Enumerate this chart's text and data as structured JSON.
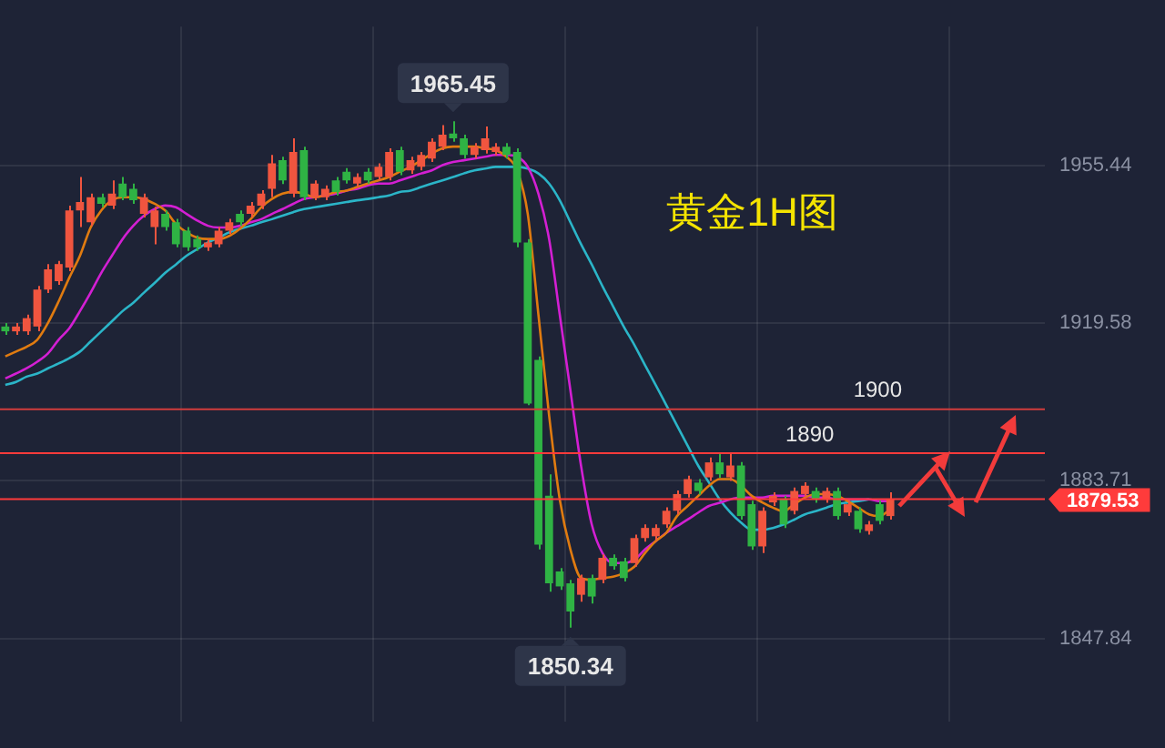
{
  "chart_data": {
    "type": "candlestick",
    "title": "黄金1H图",
    "categories": [
      null,
      null,
      null,
      null,
      null,
      null,
      null,
      null,
      null,
      null,
      null,
      null,
      null,
      null,
      null,
      null,
      null,
      null,
      null,
      null,
      null,
      null,
      null,
      null,
      null,
      null,
      null,
      null,
      null,
      null,
      null,
      null,
      null,
      null,
      null,
      null,
      null,
      null,
      null,
      null,
      null,
      null,
      null,
      null,
      null,
      null,
      null,
      null,
      null,
      null,
      null,
      null,
      null,
      null,
      null,
      null,
      null,
      null,
      null,
      null,
      null,
      null,
      null,
      null,
      null,
      null,
      null,
      null,
      null,
      null,
      null,
      null,
      null,
      null,
      null,
      null,
      null,
      null,
      null,
      null,
      null,
      null,
      null,
      null,
      null,
      null,
      null,
      null,
      null,
      null,
      null,
      null,
      null,
      null,
      null,
      null,
      null,
      null
    ],
    "ohlc": [
      [
        1918.8,
        1919.6,
        1916.9,
        1917.7
      ],
      [
        1917.7,
        1919.6,
        1916.9,
        1918.8
      ],
      [
        1917.7,
        1921.5,
        1916.9,
        1920.7
      ],
      [
        1918.8,
        1928.0,
        1917.7,
        1927.2
      ],
      [
        1927.2,
        1933.0,
        1926.4,
        1931.8
      ],
      [
        1929.1,
        1933.7,
        1928.3,
        1933.0
      ],
      [
        1932.2,
        1946.3,
        1931.4,
        1945.2
      ],
      [
        1945.2,
        1952.8,
        1941.4,
        1947.1
      ],
      [
        1942.5,
        1949.0,
        1941.7,
        1948.2
      ],
      [
        1948.2,
        1949.0,
        1945.9,
        1946.7
      ],
      [
        1946.3,
        1952.0,
        1945.5,
        1949.0
      ],
      [
        1951.3,
        1952.8,
        1947.5,
        1948.2
      ],
      [
        1950.1,
        1951.3,
        1946.7,
        1947.5
      ],
      [
        1944.4,
        1949.0,
        1943.6,
        1948.2
      ],
      [
        1941.4,
        1946.0,
        1937.5,
        1945.2
      ],
      [
        1944.4,
        1945.2,
        1940.6,
        1941.4
      ],
      [
        1942.5,
        1943.3,
        1936.8,
        1937.5
      ],
      [
        1940.6,
        1941.4,
        1936.0,
        1936.8
      ],
      [
        1938.7,
        1939.5,
        1936.0,
        1936.8
      ],
      [
        1936.8,
        1938.7,
        1936.0,
        1937.9
      ],
      [
        1937.5,
        1941.4,
        1936.8,
        1940.6
      ],
      [
        1940.6,
        1943.3,
        1939.8,
        1942.5
      ],
      [
        1944.4,
        1945.2,
        1941.7,
        1942.5
      ],
      [
        1944.4,
        1947.1,
        1943.6,
        1946.3
      ],
      [
        1946.3,
        1949.8,
        1945.5,
        1949.0
      ],
      [
        1950.1,
        1957.8,
        1948.2,
        1955.9
      ],
      [
        1956.6,
        1957.4,
        1951.2,
        1952.0
      ],
      [
        1949.0,
        1961.6,
        1948.2,
        1958.5
      ],
      [
        1958.9,
        1959.7,
        1947.5,
        1948.2
      ],
      [
        1948.2,
        1952.0,
        1947.5,
        1951.3
      ],
      [
        1948.2,
        1950.9,
        1947.5,
        1950.1
      ],
      [
        1952.0,
        1952.8,
        1948.6,
        1949.4
      ],
      [
        1954.0,
        1954.8,
        1951.3,
        1952.0
      ],
      [
        1951.3,
        1953.6,
        1950.5,
        1952.8
      ],
      [
        1954.0,
        1954.8,
        1951.3,
        1952.0
      ],
      [
        1952.8,
        1955.9,
        1952.0,
        1955.1
      ],
      [
        1952.8,
        1959.3,
        1952.0,
        1958.5
      ],
      [
        1958.9,
        1959.7,
        1953.2,
        1954.0
      ],
      [
        1954.3,
        1957.4,
        1953.5,
        1956.6
      ],
      [
        1955.1,
        1958.5,
        1954.3,
        1957.8
      ],
      [
        1957.0,
        1961.6,
        1956.2,
        1960.8
      ],
      [
        1959.7,
        1964.6,
        1958.9,
        1962.4
      ],
      [
        1962.7,
        1965.45,
        1960.8,
        1961.6
      ],
      [
        1961.6,
        1962.4,
        1957.0,
        1957.8
      ],
      [
        1957.8,
        1960.5,
        1957.0,
        1959.7
      ],
      [
        1958.9,
        1964.3,
        1958.1,
        1961.6
      ],
      [
        1958.5,
        1960.5,
        1957.7,
        1959.7
      ],
      [
        1959.7,
        1960.5,
        1957.0,
        1957.8
      ],
      [
        1958.5,
        1959.3,
        1936.8,
        1937.9
      ],
      [
        1937.9,
        1938.7,
        1900.9,
        1901.3
      ],
      [
        1911.2,
        1912.0,
        1868.1,
        1869.2
      ],
      [
        1880.3,
        1885.2,
        1858.5,
        1860.4
      ],
      [
        1863.1,
        1863.9,
        1858.9,
        1859.7
      ],
      [
        1860.4,
        1861.2,
        1850.34,
        1854.0
      ],
      [
        1857.8,
        1862.4,
        1856.2,
        1861.6
      ],
      [
        1861.6,
        1862.4,
        1855.8,
        1857.4
      ],
      [
        1861.2,
        1867.0,
        1860.4,
        1866.2
      ],
      [
        1866.2,
        1867.0,
        1863.5,
        1864.3
      ],
      [
        1865.4,
        1866.2,
        1860.8,
        1861.6
      ],
      [
        1865.0,
        1871.5,
        1864.2,
        1870.7
      ],
      [
        1870.7,
        1873.8,
        1869.9,
        1873.0
      ],
      [
        1871.1,
        1873.8,
        1870.3,
        1873.0
      ],
      [
        1873.8,
        1877.7,
        1873.0,
        1876.9
      ],
      [
        1876.9,
        1881.5,
        1876.1,
        1880.7
      ],
      [
        1880.7,
        1884.9,
        1879.9,
        1884.1
      ],
      [
        1883.3,
        1884.1,
        1880.6,
        1881.4
      ],
      [
        1884.5,
        1889.0,
        1883.7,
        1887.9
      ],
      [
        1887.9,
        1889.8,
        1884.4,
        1885.2
      ],
      [
        1884.5,
        1889.8,
        1883.7,
        1887.2
      ],
      [
        1887.2,
        1888.0,
        1874.9,
        1875.7
      ],
      [
        1878.4,
        1879.2,
        1868.0,
        1868.8
      ],
      [
        1868.8,
        1877.7,
        1867.3,
        1876.9
      ],
      [
        1878.8,
        1881.1,
        1878.0,
        1880.3
      ],
      [
        1879.5,
        1880.3,
        1873.0,
        1873.8
      ],
      [
        1876.9,
        1882.2,
        1876.1,
        1881.4
      ],
      [
        1880.7,
        1883.4,
        1879.9,
        1882.6
      ],
      [
        1881.4,
        1882.2,
        1878.7,
        1879.5
      ],
      [
        1879.5,
        1882.2,
        1878.7,
        1881.4
      ],
      [
        1881.4,
        1882.2,
        1874.9,
        1875.7
      ],
      [
        1876.5,
        1879.2,
        1875.7,
        1878.4
      ],
      [
        1876.9,
        1877.7,
        1871.9,
        1872.7
      ],
      [
        1872.3,
        1874.6,
        1871.5,
        1873.8
      ],
      [
        1878.4,
        1879.2,
        1873.8,
        1874.6
      ],
      [
        1875.7,
        1881.1,
        1874.9,
        1879.53
      ],
      null,
      null,
      null,
      null,
      null,
      null,
      null,
      null,
      null,
      null,
      null,
      null,
      null,
      null
    ],
    "series": [
      {
        "type": "line",
        "color": "#e07b10",
        "values": [
          1912.0,
          1913.1,
          1914.2,
          1915.8,
          1919.6,
          1924.5,
          1929.9,
          1934.9,
          1941.3,
          1945.2,
          1947.5,
          1948.2,
          1948.2,
          1947.8,
          1946.7,
          1945.2,
          1942.1,
          1940.2,
          1939.0,
          1938.7,
          1938.7,
          1939.4,
          1941.0,
          1943.2,
          1945.9,
          1947.8,
          1949.0,
          1949.4,
          1949.0,
          1948.2,
          1948.6,
          1949.4,
          1949.7,
          1950.5,
          1951.3,
          1952.0,
          1952.8,
          1954.0,
          1955.1,
          1956.6,
          1958.1,
          1959.3,
          1959.7,
          1959.7,
          1959.7,
          1959.3,
          1958.9,
          1957.4,
          1954.3,
          1944.4,
          1921.5,
          1898.6,
          1879.5,
          1868.1,
          1861.6,
          1861.2,
          1861.6,
          1861.9,
          1862.7,
          1864.2,
          1867.3,
          1870.0,
          1871.9,
          1875.7,
          1878.0,
          1880.3,
          1882.6,
          1884.1,
          1884.1,
          1882.6,
          1880.3,
          1878.8,
          1877.6,
          1876.8,
          1878.4,
          1879.9,
          1880.7,
          1880.7,
          1880.3,
          1879.1,
          1877.6,
          1876.1,
          1875.7,
          1877.2,
          null,
          null,
          null,
          null,
          null,
          null,
          null,
          null,
          null,
          null,
          null,
          null,
          null,
          null
        ]
      },
      {
        "type": "line",
        "color": "#d31fd3",
        "values": [
          1907.0,
          1908.1,
          1909.3,
          1910.8,
          1912.7,
          1915.8,
          1918.4,
          1922.3,
          1926.5,
          1931.0,
          1934.9,
          1938.7,
          1941.7,
          1944.0,
          1945.5,
          1946.3,
          1945.9,
          1944.4,
          1942.9,
          1941.7,
          1941.3,
          1941.3,
          1941.7,
          1942.5,
          1943.2,
          1944.4,
          1945.5,
          1946.7,
          1947.8,
          1948.2,
          1948.6,
          1949.0,
          1949.7,
          1950.1,
          1950.9,
          1951.3,
          1951.3,
          1952.0,
          1952.8,
          1953.6,
          1954.3,
          1955.5,
          1956.2,
          1956.6,
          1957.0,
          1957.4,
          1957.8,
          1957.8,
          1957.4,
          1955.1,
          1949.0,
          1938.7,
          1921.5,
          1904.3,
          1887.1,
          1873.8,
          1867.3,
          1865.0,
          1865.0,
          1865.8,
          1868.1,
          1870.0,
          1871.9,
          1873.4,
          1874.9,
          1876.5,
          1878.0,
          1878.7,
          1879.5,
          1879.9,
          1879.9,
          1879.9,
          1880.3,
          1880.3,
          1880.3,
          1880.3,
          1879.9,
          1879.9,
          1879.5,
          1879.5,
          1879.5,
          1879.5,
          1879.1,
          1879.1,
          null,
          null,
          null,
          null,
          null,
          null,
          null,
          null,
          null,
          null,
          null,
          null,
          null,
          null
        ]
      },
      {
        "type": "line",
        "color": "#2bb5c8",
        "values": [
          1905.5,
          1906.2,
          1907.4,
          1908.1,
          1909.3,
          1910.4,
          1911.6,
          1913.1,
          1915.4,
          1917.7,
          1920.0,
          1922.3,
          1924.2,
          1926.5,
          1928.7,
          1931.0,
          1932.9,
          1934.9,
          1936.4,
          1937.9,
          1939.0,
          1940.2,
          1941.0,
          1941.7,
          1942.5,
          1943.2,
          1944.0,
          1944.8,
          1945.5,
          1945.9,
          1946.3,
          1946.7,
          1947.1,
          1947.5,
          1947.8,
          1948.2,
          1948.6,
          1949.4,
          1949.7,
          1950.5,
          1951.3,
          1952.0,
          1952.8,
          1953.6,
          1954.3,
          1954.7,
          1955.1,
          1955.1,
          1955.1,
          1954.7,
          1953.6,
          1951.3,
          1947.5,
          1942.5,
          1937.5,
          1932.9,
          1928.0,
          1923.4,
          1918.8,
          1914.6,
          1910.0,
          1905.5,
          1900.9,
          1896.3,
          1891.7,
          1887.1,
          1883.3,
          1879.5,
          1876.5,
          1874.2,
          1872.6,
          1872.6,
          1873.0,
          1873.8,
          1874.9,
          1876.1,
          1876.8,
          1877.6,
          1878.4,
          1878.8,
          1879.1,
          1879.5,
          null,
          null,
          null,
          null,
          null,
          null,
          null,
          null,
          null,
          null,
          null,
          null,
          null,
          null,
          null,
          null
        ]
      }
    ],
    "ylim": [
      1829,
      1987
    ],
    "yticks": [
      1847.84,
      1883.71,
      1919.58,
      1955.44
    ],
    "grid": true,
    "tick_labels": "y",
    "ref_lines": [
      {
        "axis": "y",
        "value": 1900,
        "label": "1900",
        "color": "#d23c3c"
      },
      {
        "axis": "y",
        "value": 1890,
        "label": "1890",
        "color": "#ff3b3b"
      },
      {
        "axis": "y",
        "value": 1879.53,
        "label": "1879.53",
        "color": "#ff3b3b"
      }
    ],
    "annotations": [
      {
        "text": "1965.45",
        "y": 1965.45
      },
      {
        "text": "1850.34",
        "y": 1850.34
      }
    ]
  }
}
